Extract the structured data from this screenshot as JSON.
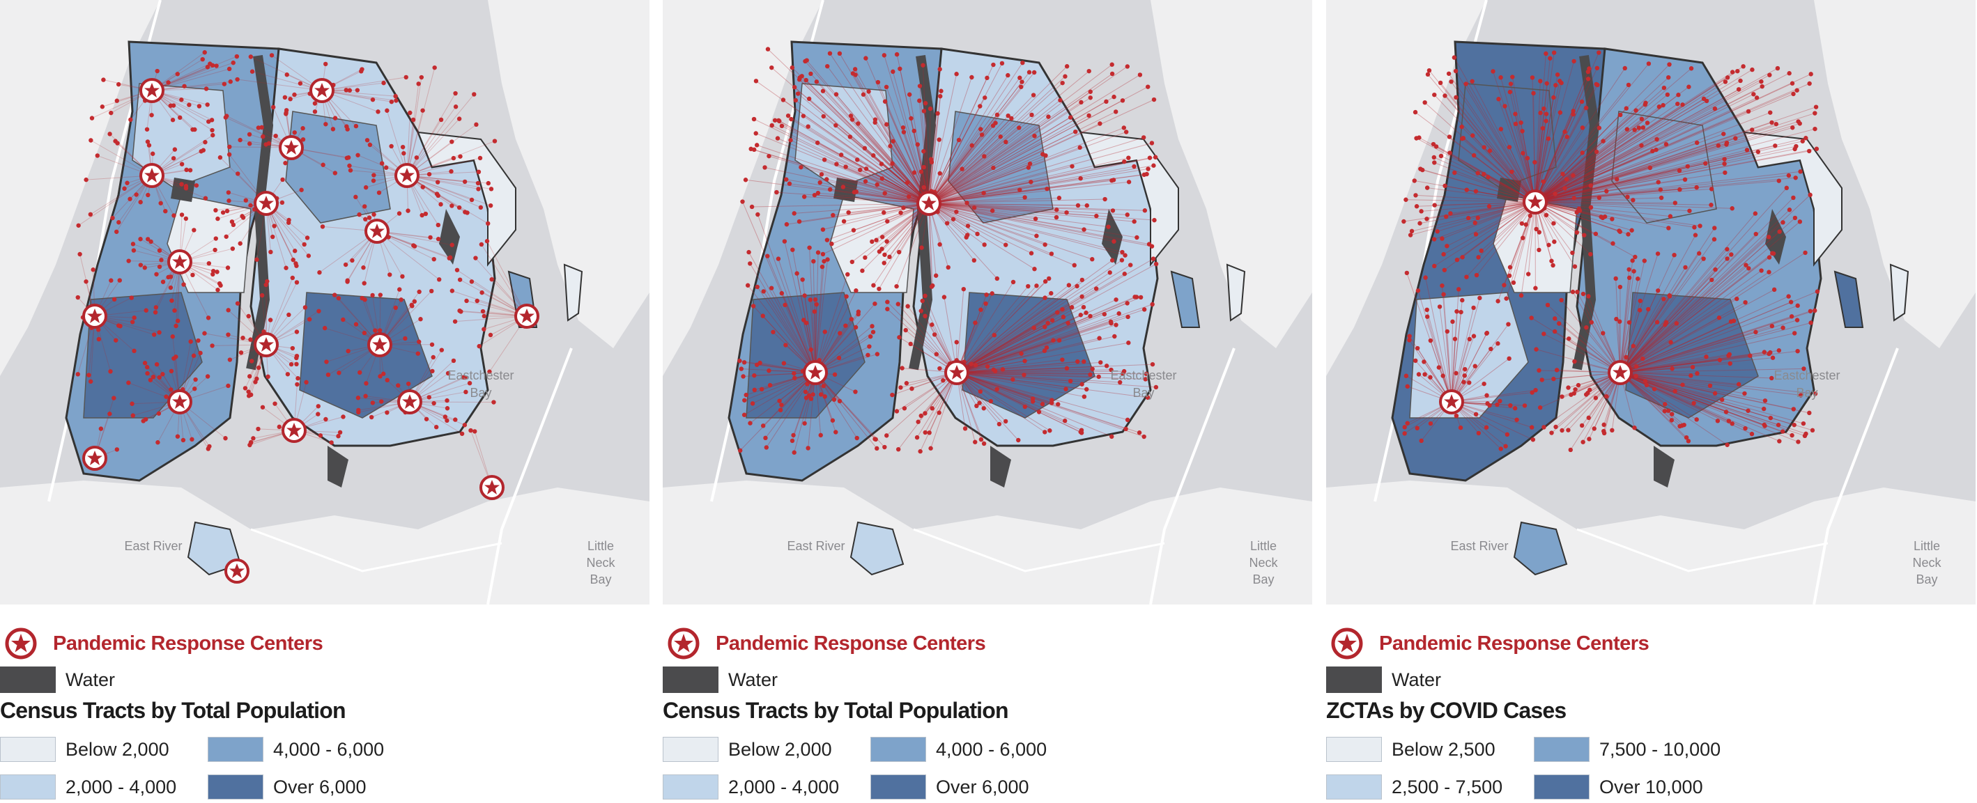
{
  "colors": {
    "class_1": "#e8edf2",
    "class_2": "#c0d5ea",
    "class_3": "#7ea3ca",
    "class_4": "#50719f",
    "water": "#4b4b4d",
    "accent_red": "#b3262d",
    "basemap": "#d7d8dc"
  },
  "panels": [
    {
      "map_labels": {
        "bay_1": "Eastchester",
        "bay_2": "Bay",
        "river": "East River",
        "neck_1": "Little",
        "neck_2": "Neck",
        "neck_3": "Bay"
      },
      "legend": {
        "prc_label": "Pandemic Response Centers",
        "water_label": "Water",
        "title": "Census Tracts by Total Population",
        "classes": [
          "Below 2,000",
          "2,000 - 4,000",
          "4,000 - 6,000",
          "Over 6,000"
        ]
      }
    },
    {
      "map_labels": {
        "bay_1": "Eastchester",
        "bay_2": "Bay",
        "river": "East River",
        "neck_1": "Little",
        "neck_2": "Neck",
        "neck_3": "Bay"
      },
      "legend": {
        "prc_label": "Pandemic Response Centers",
        "water_label": "Water",
        "title": "Census Tracts by Total Population",
        "classes": [
          "Below 2,000",
          "2,000 - 4,000",
          "4,000 - 6,000",
          "Over 6,000"
        ]
      }
    },
    {
      "map_labels": {
        "bay_1": "Eastchester",
        "bay_2": "Bay",
        "river": "East River",
        "neck_1": "Little",
        "neck_2": "Neck",
        "neck_3": "Bay"
      },
      "legend": {
        "prc_label": "Pandemic Response Centers",
        "water_label": "Water",
        "title": "ZCTAs by COVID Cases",
        "classes": [
          "Below 2,500",
          "2,500 - 7,500",
          "7,500 - 10,000",
          "Over 10,000"
        ]
      }
    }
  ]
}
